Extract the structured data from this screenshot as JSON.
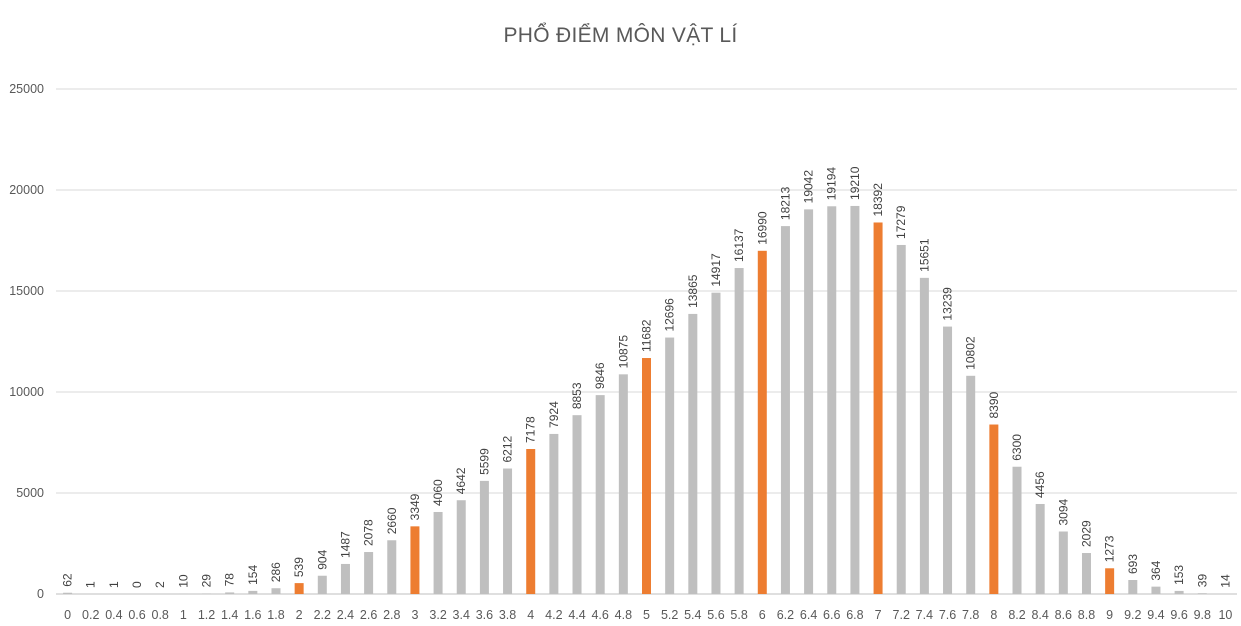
{
  "chart_data": {
    "type": "bar",
    "title": "PHỔ ĐIỂM MÔN VẬT LÍ",
    "xlabel": "",
    "ylabel": "",
    "ylim": [
      0,
      25000
    ],
    "yticks": [
      "0",
      "5000",
      "10000",
      "15000",
      "20000",
      "25000"
    ],
    "grid": true,
    "legend": "none",
    "colors": {
      "default": "#BFBFBF",
      "highlight": "#ED7D31",
      "gridline": "#D9D9D9"
    },
    "highlight_categories": [
      "2",
      "3",
      "4",
      "5",
      "6",
      "7",
      "8",
      "9"
    ],
    "categories": [
      "0",
      "0.2",
      "0.4",
      "0.6",
      "0.8",
      "1",
      "1.2",
      "1.4",
      "1.6",
      "1.8",
      "2",
      "2.2",
      "2.4",
      "2.6",
      "2.8",
      "3",
      "3.2",
      "3.4",
      "3.6",
      "3.8",
      "4",
      "4.2",
      "4.4",
      "4.6",
      "4.8",
      "5",
      "5.2",
      "5.4",
      "5.6",
      "5.8",
      "6",
      "6.2",
      "6.4",
      "6.6",
      "6.8",
      "7",
      "7.2",
      "7.4",
      "7.6",
      "7.8",
      "8",
      "8.2",
      "8.4",
      "8.6",
      "8.8",
      "9",
      "9.2",
      "9.4",
      "9.6",
      "9.8",
      "10"
    ],
    "values": [
      62,
      1,
      1,
      0,
      2,
      10,
      29,
      78,
      154,
      286,
      539,
      904,
      1487,
      2078,
      2660,
      3349,
      4060,
      4642,
      5599,
      6212,
      7178,
      7924,
      8853,
      9846,
      10875,
      11682,
      12696,
      13865,
      14917,
      16137,
      16990,
      18213,
      19042,
      19194,
      19210,
      18392,
      17279,
      15651,
      13239,
      10802,
      8390,
      6300,
      4456,
      3094,
      2029,
      1273,
      693,
      364,
      153,
      39,
      14
    ]
  }
}
